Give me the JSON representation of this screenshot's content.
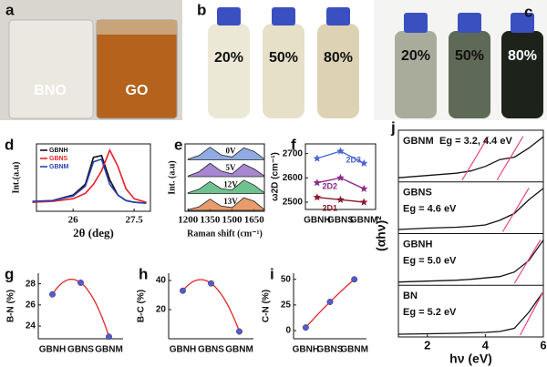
{
  "photos": {
    "a": {
      "panel_label": "a",
      "labels": [
        "BNO",
        "GO"
      ]
    },
    "b": {
      "panel_label": "b",
      "labels": [
        "20%",
        "50%",
        "80%"
      ]
    },
    "c": {
      "panel_label": "c",
      "labels": [
        "20%",
        "50%",
        "80%"
      ]
    }
  },
  "chart_data": [
    {
      "type": "line",
      "panel_label": "d",
      "xlabel": "2θ (deg)",
      "ylabel": "Int.(a.u)",
      "x": [
        25,
        25.5,
        26,
        26.3,
        26.5,
        26.7,
        26.9,
        27.1,
        27.3,
        27.5,
        27.8
      ],
      "xlim": [
        25.1,
        27.9
      ],
      "xticks": [
        26,
        27.5
      ],
      "ylim": [
        0,
        75
      ],
      "series": [
        {
          "name": "GBNH",
          "color": "#111111",
          "values": [
            10,
            12,
            18,
            30,
            60,
            62,
            35,
            18,
            12,
            10,
            9
          ]
        },
        {
          "name": "GBNS",
          "color": "#e8202a",
          "values": [
            10,
            11,
            14,
            20,
            30,
            45,
            68,
            50,
            25,
            14,
            10
          ]
        },
        {
          "name": "GBNM",
          "color": "#2a3fb0",
          "values": [
            11,
            12,
            17,
            28,
            55,
            58,
            30,
            18,
            12,
            10,
            9
          ]
        }
      ]
    },
    {
      "type": "raman",
      "panel_label": "e",
      "xlabel": "Raman shift (cm⁻¹)",
      "ylabel": "Int. (a.u)",
      "x": [
        1200,
        1275,
        1350,
        1425,
        1500,
        1580,
        1650,
        1720
      ],
      "xlim": [
        1180,
        1720
      ],
      "xticks": [
        1200,
        1350,
        1500,
        1650
      ],
      "ylim": [
        0,
        1
      ],
      "series": [
        {
          "name": "0V",
          "color": "#6a8fd8",
          "values": [
            0.05,
            0.3,
            0.9,
            0.35,
            0.2,
            0.85,
            0.6,
            0.05
          ]
        },
        {
          "name": "5V",
          "color": "#8a5fc0",
          "values": [
            0.05,
            0.35,
            0.95,
            0.4,
            0.2,
            0.9,
            0.55,
            0.05
          ]
        },
        {
          "name": "12V",
          "color": "#3fae6a",
          "values": [
            0.05,
            0.3,
            0.85,
            0.35,
            0.25,
            0.95,
            0.6,
            0.05
          ]
        },
        {
          "name": "13V",
          "color": "#e07a3a",
          "values": [
            0.05,
            0.25,
            0.8,
            0.3,
            0.2,
            0.9,
            0.65,
            0.05
          ]
        }
      ]
    },
    {
      "type": "line-marker",
      "panel_label": "f",
      "ylabel": "ω2D (cm⁻¹)",
      "categories": [
        "GBNH",
        "GBNS",
        "GBNM"
      ],
      "ylim": [
        2470,
        2740
      ],
      "yticks": [
        2500,
        2600,
        2700
      ],
      "series": [
        {
          "name": "2D3",
          "color": "#4a63d0",
          "values": [
            2680,
            2710,
            2660
          ]
        },
        {
          "name": "2D2",
          "color": "#8a2a8a",
          "values": [
            2580,
            2600,
            2555
          ]
        },
        {
          "name": "2D1",
          "color": "#8a1a2a",
          "values": [
            2520,
            2510,
            2500
          ]
        }
      ]
    },
    {
      "type": "fit",
      "panel_label": "g",
      "ylabel": "B-N (%)",
      "categories": [
        "GBNH",
        "GBNS",
        "GBNM"
      ],
      "values": [
        27,
        28.1,
        23
      ],
      "ylim": [
        22.8,
        29
      ],
      "yticks": [
        24,
        26,
        28
      ],
      "color": "#5558d0"
    },
    {
      "type": "fit",
      "panel_label": "h",
      "ylabel": "B-C (%)",
      "categories": [
        "GBNH",
        "GBNS",
        "GBNM"
      ],
      "values": [
        33,
        38,
        5
      ],
      "ylim": [
        0,
        45
      ],
      "yticks": [
        20,
        40
      ],
      "color": "#5558d0"
    },
    {
      "type": "fit",
      "panel_label": "i",
      "ylabel": "C-N (%)",
      "categories": [
        "GBNH",
        "GBNS",
        "GBNM"
      ],
      "values": [
        3,
        28,
        50
      ],
      "ylim": [
        -8,
        56
      ],
      "yticks": [
        0,
        25,
        50
      ],
      "color": "#5558d0"
    },
    {
      "type": "tauc",
      "panel_label": "j",
      "xlabel": "hν (eV)",
      "ylabel": "(αhν)²",
      "x": [
        1,
        2,
        3,
        3.5,
        4,
        4.5,
        5,
        5.5,
        6
      ],
      "xlim": [
        1,
        6
      ],
      "xticks": [
        2,
        4,
        6
      ],
      "ylim": [
        0,
        1
      ],
      "series": [
        {
          "name": "GBNM",
          "annotation": "Eg = 3.2, 4.4 eV",
          "eg": [
            3.2,
            4.4
          ],
          "color": "#111111",
          "values": [
            0.05,
            0.1,
            0.15,
            0.2,
            0.3,
            0.45,
            0.5,
            0.7,
            0.95
          ]
        },
        {
          "name": "GBNS",
          "annotation": "Eg = 4.6 eV",
          "eg": [
            4.6
          ],
          "color": "#111111",
          "values": [
            0.05,
            0.08,
            0.1,
            0.12,
            0.15,
            0.25,
            0.4,
            0.7,
            0.95
          ]
        },
        {
          "name": "GBNH",
          "annotation": "Eg = 5.0 eV",
          "eg": [
            5.0
          ],
          "color": "#111111",
          "values": [
            0.03,
            0.05,
            0.07,
            0.09,
            0.12,
            0.15,
            0.25,
            0.5,
            0.95
          ]
        },
        {
          "name": "BN",
          "annotation": "Eg = 5.2 eV",
          "eg": [
            5.2
          ],
          "color": "#111111",
          "values": [
            0.02,
            0.03,
            0.04,
            0.05,
            0.06,
            0.08,
            0.15,
            0.5,
            0.95
          ]
        }
      ]
    }
  ]
}
